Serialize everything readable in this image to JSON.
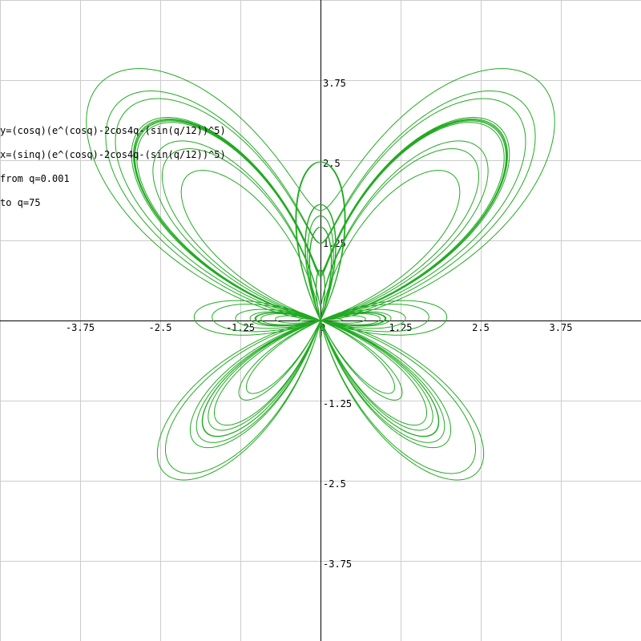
{
  "chart_data": {
    "type": "line",
    "title": "",
    "xlabel": "",
    "ylabel": "",
    "xlim": [
      -5,
      5
    ],
    "ylim": [
      -5,
      5
    ],
    "grid": true,
    "grid_step": 1.25,
    "x_ticks": [
      -3.75,
      -2.5,
      -1.25,
      1.25,
      2.5,
      3.75
    ],
    "y_ticks": [
      3.75,
      2.5,
      1.25,
      -1.25,
      -2.5,
      -3.75
    ],
    "x_tick_labels": [
      "-3.75",
      "-2.5",
      "-1.25",
      "1.25",
      "2.5",
      "3.75"
    ],
    "y_tick_labels": [
      "3.75",
      "2.5",
      "1.25",
      "-1.25",
      "-2.5",
      "-3.75"
    ],
    "origin_label": "0",
    "series": [
      {
        "parametric": true,
        "x_expr": "sin(q)*(exp(cos(q)) - 2*cos(4*q) - pow(sin(q/12),5))",
        "y_expr": "cos(q)*(exp(cos(q)) - 2*cos(4*q) - pow(sin(q/12),5))",
        "q_start": 0.001,
        "q_end": 75,
        "color": "#22aa22"
      }
    ],
    "annotations": [
      "y=(cosq)(e^(cosq)-2cos4q-(sin(q/12))^5)",
      "x=(sinq)(e^(cosq)-2cos4q-(sin(q/12))^5)",
      "from q=0.001",
      "to q=75"
    ]
  }
}
